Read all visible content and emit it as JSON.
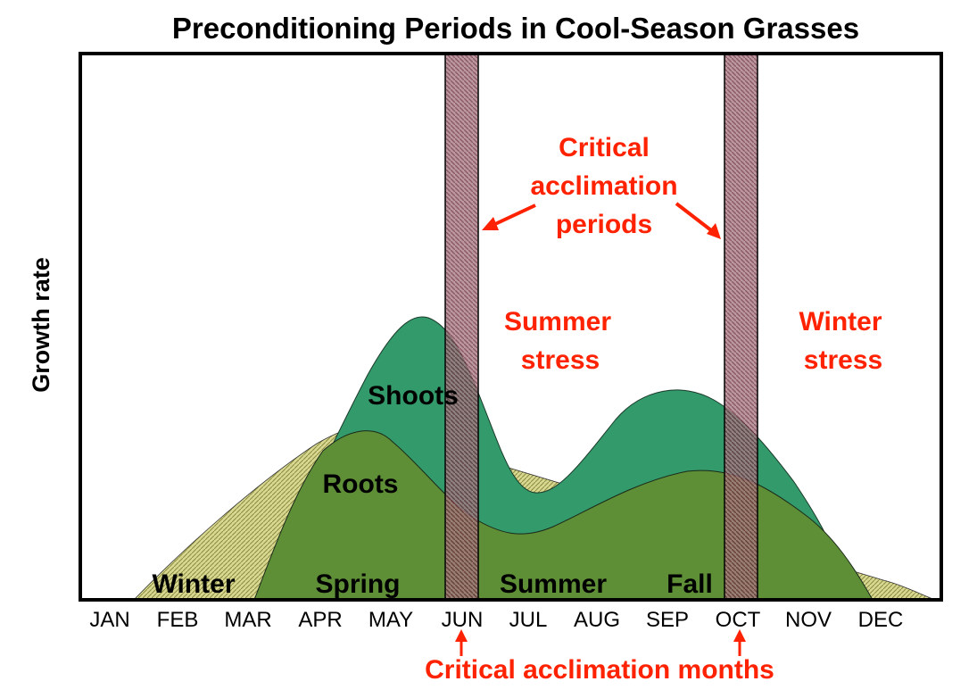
{
  "title": "Preconditioning Periods in Cool-Season Grasses",
  "ylabel": "Growth rate",
  "months": [
    "JAN",
    "FEB",
    "MAR",
    "APR",
    "MAY",
    "JUN",
    "JUL",
    "AUG",
    "SEP",
    "OCT",
    "NOV",
    "DEC"
  ],
  "curve_labels": {
    "shoots": "Shoots",
    "roots": "Roots"
  },
  "seasons": {
    "winter": "Winter",
    "spring": "Spring",
    "summer": "Summer",
    "fall": "Fall"
  },
  "annotations": {
    "critical_periods": [
      "Critical",
      "acclimation",
      "periods"
    ],
    "summer_stress": [
      "Summer",
      "stress"
    ],
    "winter_stress": [
      "Winter",
      "stress"
    ],
    "critical_months": "Critical acclimation months"
  },
  "critical_months_list": [
    "JUN",
    "OCT"
  ],
  "colors": {
    "shoots": "#339a6b",
    "roots": "#5e8e36",
    "early_growth": "#d8d890",
    "band": "#a06070",
    "accent": "#ff2200"
  }
}
